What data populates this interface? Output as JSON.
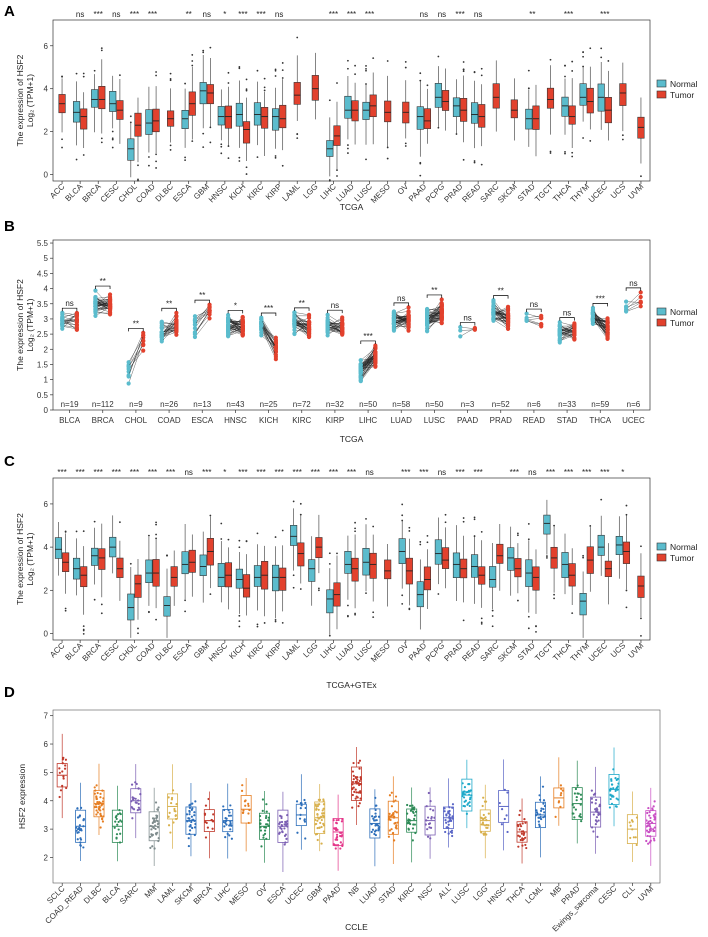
{
  "colors": {
    "normal": "#5bbccd",
    "tumor": "#e2412d",
    "bracket": "#000000"
  },
  "legend": {
    "normal": "Normal",
    "tumor": "Tumor"
  },
  "chart_data": [
    {
      "panel": "A",
      "type": "boxplot",
      "xlabel": "TCGA",
      "ylabel_line1": "The expression of HSF2",
      "ylabel_line2": "Log₂ (TPM+1)",
      "yticks": [
        0,
        2,
        4,
        6
      ],
      "ylim": [
        -0.3,
        7.2
      ],
      "categories": [
        "ACC",
        "BLCA",
        "BRCA",
        "CESC",
        "CHOL",
        "COAD",
        "DLBC",
        "ESCA",
        "GBM",
        "HNSC",
        "KICH",
        "KIRC",
        "KIRP",
        "LAML",
        "LGG",
        "LIHC",
        "LUAD",
        "LUSC",
        "MESO",
        "OV",
        "PAAD",
        "PCPG",
        "PRAD",
        "READ",
        "SARC",
        "SKCM",
        "STAD",
        "TGCT",
        "THCA",
        "THYM",
        "UCEC",
        "UCS",
        "UVM"
      ],
      "significance": [
        "",
        "ns",
        "***",
        "ns",
        "***",
        "***",
        "",
        "**",
        "ns",
        "*",
        "***",
        "***",
        "ns",
        "",
        "",
        "***",
        "***",
        "***",
        "",
        "",
        "ns",
        "ns",
        "***",
        "ns",
        "",
        "",
        "**",
        "",
        "***",
        "",
        "***",
        "",
        ""
      ],
      "normal_medians": [
        null,
        2.9,
        3.5,
        3.3,
        1.2,
        2.4,
        null,
        2.6,
        3.9,
        2.7,
        2.8,
        2.8,
        2.7,
        null,
        null,
        1.2,
        3.0,
        3.0,
        null,
        null,
        2.7,
        3.6,
        3.2,
        2.8,
        null,
        null,
        2.6,
        null,
        3.2,
        3.6,
        3.6,
        null,
        null
      ],
      "tumor_medians": [
        3.3,
        2.7,
        3.5,
        3.0,
        2.3,
        2.5,
        2.6,
        3.3,
        3.8,
        2.7,
        2.1,
        2.7,
        2.6,
        3.7,
        4.0,
        1.8,
        3.0,
        3.2,
        2.9,
        2.9,
        2.5,
        3.4,
        3.0,
        2.7,
        3.6,
        3.0,
        2.6,
        3.5,
        2.7,
        3.4,
        3.0,
        3.8,
        2.2
      ]
    },
    {
      "panel": "B",
      "type": "paired-dot",
      "xlabel": "TCGA",
      "ylabel_line1": "The expression of HSF2",
      "ylabel_line2": "Log₂ (TPM+1)",
      "yticks": [
        0,
        0.5,
        1,
        1.5,
        2,
        2.5,
        3,
        3.5,
        4,
        4.5,
        5,
        5.5
      ],
      "ytick_labels": [
        "0",
        "0.5",
        "1",
        "1.5",
        "2",
        "2.5",
        "3",
        "3.5",
        "4",
        "4.5",
        "5",
        "5.5"
      ],
      "ylim": [
        0,
        5.6
      ],
      "categories": [
        "BLCA",
        "BRCA",
        "CHOL",
        "COAD",
        "ESCA",
        "HNSC",
        "KICH",
        "KIRC",
        "KIRP",
        "LIHC",
        "LUAD",
        "LUSC",
        "PAAD",
        "PRAD",
        "READ",
        "STAD",
        "THCA",
        "UCEC"
      ],
      "n_labels": [
        "n=19",
        "n=112",
        "n=9",
        "n=26",
        "n=13",
        "n=43",
        "n=25",
        "n=72",
        "n=32",
        "n=50",
        "n=58",
        "n=50",
        "n=3",
        "n=52",
        "n=6",
        "n=33",
        "n=59",
        "n=6"
      ],
      "significance": [
        "ns",
        "**",
        "**",
        "**",
        "**",
        "*",
        "***",
        "**",
        "ns",
        "***",
        "ns",
        "**",
        "ns",
        "**",
        "ns",
        "ns",
        "***",
        "ns"
      ],
      "normal_means": [
        2.9,
        3.5,
        1.3,
        2.5,
        2.7,
        2.8,
        2.8,
        2.9,
        2.8,
        1.3,
        3.0,
        3.0,
        2.8,
        3.2,
        3.0,
        2.6,
        3.1,
        3.4
      ],
      "tumor_means": [
        3.0,
        3.5,
        2.3,
        2.8,
        3.3,
        2.7,
        2.1,
        2.7,
        2.7,
        1.8,
        3.0,
        3.2,
        2.6,
        3.0,
        2.8,
        2.6,
        2.7,
        3.6
      ]
    },
    {
      "panel": "C",
      "type": "boxplot",
      "xlabel": "TCGA+GTEx",
      "ylabel_line1": "The expression of HSF2",
      "ylabel_line2": "Log₂ (TPM+1)",
      "yticks": [
        0,
        2,
        4,
        6
      ],
      "ylim": [
        -0.3,
        7.2
      ],
      "categories": [
        "ACC",
        "BLCA",
        "BRCA",
        "CESC",
        "CHOL",
        "COAD",
        "DLBC",
        "ESCA",
        "GBM",
        "HNSC",
        "KICH",
        "KIRC",
        "KIRP",
        "LAML",
        "LGG",
        "LIHC",
        "LUAD",
        "LUSC",
        "MESO",
        "OV",
        "PAAD",
        "PCPG",
        "PRAD",
        "READ",
        "SARC",
        "SKCM",
        "STAD",
        "TGCT",
        "THCA",
        "THYM",
        "UCEC",
        "UCS",
        "UVM"
      ],
      "significance": [
        "***",
        "***",
        "***",
        "***",
        "***",
        "***",
        "***",
        "ns",
        "***",
        "*",
        "***",
        "***",
        "***",
        "***",
        "***",
        "***",
        "***",
        "ns",
        "",
        "***",
        "***",
        "ns",
        "***",
        "***",
        "",
        "***",
        "ns",
        "***",
        "***",
        "***",
        "***",
        "*",
        ""
      ],
      "normal_medians": [
        3.9,
        3.0,
        3.6,
        4.0,
        1.2,
        2.8,
        1.3,
        3.2,
        3.1,
        2.6,
        2.5,
        2.6,
        2.6,
        4.5,
        3.0,
        1.6,
        3.2,
        3.3,
        null,
        3.8,
        1.8,
        3.7,
        3.2,
        3.1,
        2.5,
        3.5,
        2.8,
        5.1,
        3.2,
        1.5,
        4.0,
        4.1,
        null
      ],
      "tumor_medians": [
        3.3,
        2.7,
        3.5,
        3.0,
        2.3,
        2.8,
        2.6,
        3.3,
        3.8,
        2.7,
        2.1,
        2.7,
        2.6,
        3.7,
        4.0,
        1.8,
        3.0,
        3.2,
        2.9,
        2.9,
        2.5,
        3.4,
        3.0,
        2.7,
        3.6,
        3.0,
        2.6,
        3.5,
        2.7,
        3.4,
        3.0,
        3.8,
        2.2
      ]
    },
    {
      "panel": "D",
      "type": "box-jitter",
      "xlabel": "CCLE",
      "ylabel": "HSF2 expression",
      "yticks": [
        2,
        3,
        4,
        5,
        6,
        7
      ],
      "ylim": [
        1.1,
        7.2
      ],
      "categories": [
        "SCLC",
        "COAD_READ",
        "DLBC",
        "BLCA",
        "SARC",
        "MM",
        "LAML",
        "SKCM",
        "BRCA",
        "LIHC",
        "MESO",
        "OV",
        "ESCA",
        "UCEC",
        "GBM",
        "PAAD",
        "NB",
        "LUAD",
        "STAD",
        "KIRC",
        "NSC",
        "ALL",
        "LUSC",
        "LGG",
        "HNSC",
        "THCA",
        "LCML",
        "MB",
        "PRAD",
        "Ewings_sarcoma",
        "CESC",
        "CLL",
        "UVM"
      ],
      "medians": [
        4.9,
        3.1,
        3.9,
        3.1,
        4.0,
        3.1,
        3.8,
        3.3,
        3.3,
        3.3,
        3.7,
        3.1,
        3.1,
        3.5,
        3.4,
        2.9,
        4.6,
        3.2,
        3.4,
        3.3,
        3.3,
        3.4,
        4.2,
        3.3,
        3.8,
        2.9,
        3.5,
        4.1,
        3.9,
        3.6,
        4.4,
        3.0,
        3.2
      ],
      "colors": [
        "#c0392b",
        "#2e6fba",
        "#e67e22",
        "#2e8b57",
        "#7b5fb3",
        "#7f8c8d",
        "#d8b04c",
        "#2e6fba",
        "#c0392b",
        "#2e6fba",
        "#e67e22",
        "#2e8b57",
        "#7b5fb3",
        "#2e6fba",
        "#d8b04c",
        "#e4368a",
        "#c0392b",
        "#2e6fba",
        "#e67e22",
        "#2e8b57",
        "#7b5fb3",
        "#5a66c6",
        "#1ea9c9",
        "#d8b04c",
        "#5a66c6",
        "#c0392b",
        "#2e6fba",
        "#e67e22",
        "#2e8b57",
        "#7b5fb3",
        "#1ea9c9",
        "#d8b04c",
        "#c94fc4"
      ]
    }
  ]
}
